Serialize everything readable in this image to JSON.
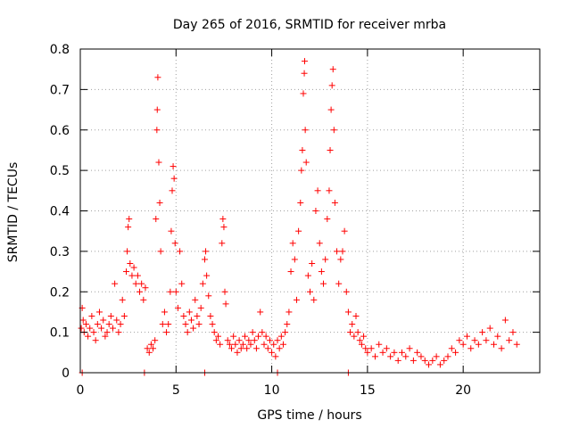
{
  "chart_data": {
    "type": "scatter",
    "title": "Day 265 of 2016, SRMTID for receiver mrba",
    "xlabel": "GPS time / hours",
    "ylabel": "SRMTID / TECUs",
    "xlim": [
      0,
      24
    ],
    "ylim": [
      0,
      0.8
    ],
    "xticks": [
      0,
      5,
      10,
      15,
      20
    ],
    "xtick_labels": [
      "0",
      "5",
      "10",
      "15",
      "20"
    ],
    "yticks": [
      0,
      0.1,
      0.2,
      0.3,
      0.4,
      0.5,
      0.6,
      0.7,
      0.8
    ],
    "ytick_labels": [
      "0",
      "0.1",
      "0.2",
      "0.3",
      "0.4",
      "0.5",
      "0.6",
      "0.7",
      "0.8"
    ],
    "grid": true,
    "marker": "plus",
    "color": "#ff0000",
    "series": [
      {
        "name": "SRMTID",
        "points": [
          [
            0.05,
            0.11
          ],
          [
            0.1,
            0.16
          ],
          [
            0.15,
            0.13
          ],
          [
            0.2,
            0.1
          ],
          [
            0.3,
            0.12
          ],
          [
            0.4,
            0.09
          ],
          [
            0.5,
            0.11
          ],
          [
            0.6,
            0.14
          ],
          [
            0.7,
            0.1
          ],
          [
            0.8,
            0.08
          ],
          [
            0.9,
            0.12
          ],
          [
            1.0,
            0.15
          ],
          [
            1.1,
            0.11
          ],
          [
            1.2,
            0.13
          ],
          [
            1.3,
            0.09
          ],
          [
            1.4,
            0.1
          ],
          [
            1.5,
            0.12
          ],
          [
            1.6,
            0.14
          ],
          [
            1.7,
            0.11
          ],
          [
            1.8,
            0.22
          ],
          [
            1.9,
            0.13
          ],
          [
            2.0,
            0.1
          ],
          [
            2.1,
            0.12
          ],
          [
            2.2,
            0.18
          ],
          [
            2.3,
            0.14
          ],
          [
            2.4,
            0.25
          ],
          [
            2.45,
            0.3
          ],
          [
            2.5,
            0.36
          ],
          [
            2.55,
            0.38
          ],
          [
            2.6,
            0.27
          ],
          [
            2.7,
            0.24
          ],
          [
            2.8,
            0.26
          ],
          [
            2.9,
            0.22
          ],
          [
            3.0,
            0.24
          ],
          [
            3.1,
            0.2
          ],
          [
            3.2,
            0.22
          ],
          [
            3.3,
            0.18
          ],
          [
            3.4,
            0.21
          ],
          [
            3.5,
            0.06
          ],
          [
            3.6,
            0.05
          ],
          [
            3.7,
            0.07
          ],
          [
            3.8,
            0.06
          ],
          [
            3.9,
            0.08
          ],
          [
            3.95,
            0.38
          ],
          [
            4.0,
            0.6
          ],
          [
            4.02,
            0.65
          ],
          [
            4.05,
            0.73
          ],
          [
            4.1,
            0.52
          ],
          [
            4.15,
            0.42
          ],
          [
            4.2,
            0.3
          ],
          [
            4.3,
            0.12
          ],
          [
            4.4,
            0.15
          ],
          [
            4.5,
            0.1
          ],
          [
            4.6,
            0.12
          ],
          [
            4.7,
            0.2
          ],
          [
            4.75,
            0.35
          ],
          [
            4.8,
            0.45
          ],
          [
            4.85,
            0.51
          ],
          [
            4.9,
            0.48
          ],
          [
            4.95,
            0.32
          ],
          [
            5.0,
            0.2
          ],
          [
            5.1,
            0.16
          ],
          [
            5.2,
            0.3
          ],
          [
            5.3,
            0.22
          ],
          [
            5.4,
            0.14
          ],
          [
            5.5,
            0.12
          ],
          [
            5.6,
            0.1
          ],
          [
            5.7,
            0.15
          ],
          [
            5.8,
            0.13
          ],
          [
            5.9,
            0.11
          ],
          [
            6.0,
            0.18
          ],
          [
            6.1,
            0.14
          ],
          [
            6.2,
            0.12
          ],
          [
            6.3,
            0.16
          ],
          [
            6.4,
            0.22
          ],
          [
            6.5,
            0.28
          ],
          [
            6.55,
            0.3
          ],
          [
            6.6,
            0.24
          ],
          [
            6.7,
            0.19
          ],
          [
            6.8,
            0.14
          ],
          [
            6.9,
            0.12
          ],
          [
            7.0,
            0.1
          ],
          [
            7.1,
            0.08
          ],
          [
            7.2,
            0.09
          ],
          [
            7.3,
            0.07
          ],
          [
            7.4,
            0.32
          ],
          [
            7.45,
            0.38
          ],
          [
            7.5,
            0.36
          ],
          [
            7.55,
            0.2
          ],
          [
            7.6,
            0.17
          ],
          [
            7.7,
            0.08
          ],
          [
            7.8,
            0.07
          ],
          [
            7.9,
            0.06
          ],
          [
            8.0,
            0.09
          ],
          [
            8.1,
            0.07
          ],
          [
            8.2,
            0.05
          ],
          [
            8.3,
            0.08
          ],
          [
            8.4,
            0.06
          ],
          [
            8.5,
            0.07
          ],
          [
            8.6,
            0.09
          ],
          [
            8.7,
            0.06
          ],
          [
            8.8,
            0.08
          ],
          [
            8.9,
            0.07
          ],
          [
            9.0,
            0.1
          ],
          [
            9.1,
            0.08
          ],
          [
            9.2,
            0.06
          ],
          [
            9.3,
            0.09
          ],
          [
            9.4,
            0.15
          ],
          [
            9.5,
            0.1
          ],
          [
            9.6,
            0.07
          ],
          [
            9.7,
            0.09
          ],
          [
            9.8,
            0.06
          ],
          [
            9.9,
            0.08
          ],
          [
            10.0,
            0.05
          ],
          [
            10.1,
            0.07
          ],
          [
            10.2,
            0.04
          ],
          [
            10.3,
            0.08
          ],
          [
            10.4,
            0.06
          ],
          [
            10.5,
            0.09
          ],
          [
            10.6,
            0.07
          ],
          [
            10.7,
            0.1
          ],
          [
            10.8,
            0.12
          ],
          [
            10.9,
            0.15
          ],
          [
            11.0,
            0.25
          ],
          [
            11.1,
            0.32
          ],
          [
            11.2,
            0.28
          ],
          [
            11.3,
            0.18
          ],
          [
            11.4,
            0.35
          ],
          [
            11.5,
            0.42
          ],
          [
            11.55,
            0.5
          ],
          [
            11.6,
            0.55
          ],
          [
            11.65,
            0.69
          ],
          [
            11.7,
            0.74
          ],
          [
            11.72,
            0.77
          ],
          [
            11.75,
            0.6
          ],
          [
            11.8,
            0.52
          ],
          [
            11.9,
            0.24
          ],
          [
            12.0,
            0.2
          ],
          [
            12.1,
            0.27
          ],
          [
            12.2,
            0.18
          ],
          [
            12.3,
            0.4
          ],
          [
            12.4,
            0.45
          ],
          [
            12.5,
            0.32
          ],
          [
            12.6,
            0.25
          ],
          [
            12.7,
            0.22
          ],
          [
            12.8,
            0.28
          ],
          [
            12.9,
            0.38
          ],
          [
            13.0,
            0.45
          ],
          [
            13.05,
            0.55
          ],
          [
            13.1,
            0.65
          ],
          [
            13.15,
            0.71
          ],
          [
            13.2,
            0.75
          ],
          [
            13.25,
            0.6
          ],
          [
            13.3,
            0.42
          ],
          [
            13.4,
            0.3
          ],
          [
            13.5,
            0.22
          ],
          [
            13.6,
            0.28
          ],
          [
            13.7,
            0.3
          ],
          [
            13.8,
            0.35
          ],
          [
            13.9,
            0.2
          ],
          [
            14.0,
            0.15
          ],
          [
            14.1,
            0.1
          ],
          [
            14.2,
            0.12
          ],
          [
            14.3,
            0.09
          ],
          [
            14.4,
            0.14
          ],
          [
            14.5,
            0.1
          ],
          [
            14.6,
            0.08
          ],
          [
            14.7,
            0.07
          ],
          [
            14.8,
            0.09
          ],
          [
            14.9,
            0.06
          ],
          [
            15.0,
            0.05
          ],
          [
            15.2,
            0.06
          ],
          [
            15.4,
            0.04
          ],
          [
            15.6,
            0.07
          ],
          [
            15.8,
            0.05
          ],
          [
            16.0,
            0.06
          ],
          [
            16.2,
            0.04
          ],
          [
            16.4,
            0.05
          ],
          [
            16.6,
            0.03
          ],
          [
            16.8,
            0.05
          ],
          [
            17.0,
            0.04
          ],
          [
            17.2,
            0.06
          ],
          [
            17.4,
            0.03
          ],
          [
            17.6,
            0.05
          ],
          [
            17.8,
            0.04
          ],
          [
            18.0,
            0.03
          ],
          [
            18.2,
            0.02
          ],
          [
            18.4,
            0.03
          ],
          [
            18.6,
            0.04
          ],
          [
            18.8,
            0.02
          ],
          [
            19.0,
            0.03
          ],
          [
            19.2,
            0.04
          ],
          [
            19.4,
            0.06
          ],
          [
            19.6,
            0.05
          ],
          [
            19.8,
            0.08
          ],
          [
            20.0,
            0.07
          ],
          [
            20.2,
            0.09
          ],
          [
            20.4,
            0.06
          ],
          [
            20.6,
            0.08
          ],
          [
            20.8,
            0.07
          ],
          [
            21.0,
            0.1
          ],
          [
            21.2,
            0.08
          ],
          [
            21.4,
            0.11
          ],
          [
            21.6,
            0.07
          ],
          [
            21.8,
            0.09
          ],
          [
            22.0,
            0.06
          ],
          [
            22.2,
            0.13
          ],
          [
            22.4,
            0.08
          ],
          [
            22.6,
            0.1
          ],
          [
            22.8,
            0.07
          ]
        ]
      }
    ],
    "zero_markers_x": [
      0.1,
      3.35,
      6.5,
      10.3,
      14.0
    ]
  }
}
